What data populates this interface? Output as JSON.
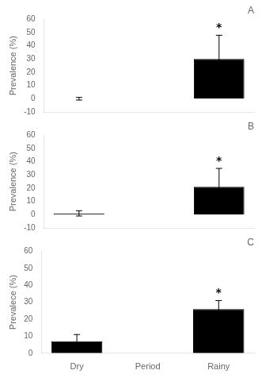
{
  "chart_data": [
    {
      "type": "bar",
      "title": "A",
      "categories": [
        "Dry",
        "Period",
        "Rainy"
      ],
      "values": [
        0.0,
        null,
        30.0
      ],
      "errors": [
        1.0,
        null,
        18.0
      ],
      "color": "#000000",
      "ylabel": "Prevalence (%)",
      "ylim": [
        -10,
        60
      ],
      "yticks": [
        -10,
        0,
        10,
        20,
        30,
        40,
        50,
        60
      ],
      "grid": false,
      "legend": false,
      "tick_labels": "y",
      "annotations": [
        {
          "text": "*",
          "category": "Rainy"
        }
      ]
    },
    {
      "type": "bar",
      "title": "B",
      "categories": [
        "Dry",
        "Period",
        "Rainy"
      ],
      "values": [
        1.0,
        null,
        21.0
      ],
      "errors": [
        2.0,
        null,
        14.0
      ],
      "color": "#000000",
      "ylabel": "Prevalence (%)",
      "ylim": [
        -10,
        60
      ],
      "yticks": [
        -10,
        0,
        10,
        20,
        30,
        40,
        50,
        60
      ],
      "grid": false,
      "legend": false,
      "tick_labels": "y",
      "annotations": [
        {
          "text": "*",
          "category": "Rainy"
        }
      ]
    },
    {
      "type": "bar",
      "title": "C",
      "categories": [
        "Dry",
        "Period",
        "Rainy"
      ],
      "values": [
        7.0,
        null,
        26.0
      ],
      "errors": [
        4.0,
        null,
        5.0
      ],
      "color": "#000000",
      "ylabel": "Prevalece (%)",
      "ylim": [
        0,
        60
      ],
      "yticks": [
        0,
        10,
        20,
        30,
        40,
        50,
        60
      ],
      "grid": false,
      "legend": false,
      "annotations": [
        {
          "text": "*",
          "category": "Rainy"
        }
      ]
    }
  ]
}
